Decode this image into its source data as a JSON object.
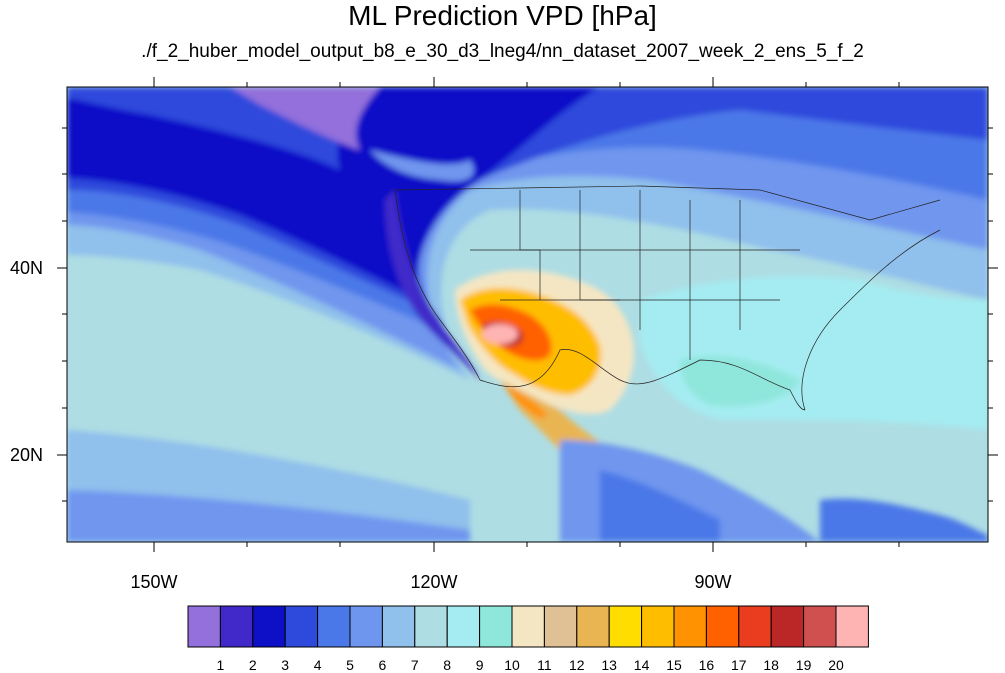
{
  "title": "ML Prediction VPD [hPa]",
  "subtitle": "./f_2_huber_model_output_b8_e_30_d3_lneg4/nn_dataset_2007_week_2_ens_5_f_2",
  "lat_labels": [
    "40N",
    "20N"
  ],
  "lon_labels": [
    "150W",
    "120W",
    "90W"
  ],
  "colorbar": {
    "colors": [
      "#9370db",
      "#4129c9",
      "#0e10c8",
      "#2d4adc",
      "#4b78e8",
      "#6f96ee",
      "#90c0ec",
      "#aedde4",
      "#a4ecf1",
      "#8fe6db",
      "#f5e6c3",
      "#e0c195",
      "#e9b553",
      "#ffdd00",
      "#ffbd00",
      "#ff9200",
      "#ff6000",
      "#ea3c1e",
      "#bb2727",
      "#d05050",
      "#ffb4b4"
    ],
    "labels": [
      "1",
      "2",
      "3",
      "4",
      "5",
      "6",
      "7",
      "8",
      "9",
      "10",
      "11",
      "12",
      "13",
      "14",
      "15",
      "16",
      "17",
      "18",
      "19",
      "20"
    ]
  }
}
